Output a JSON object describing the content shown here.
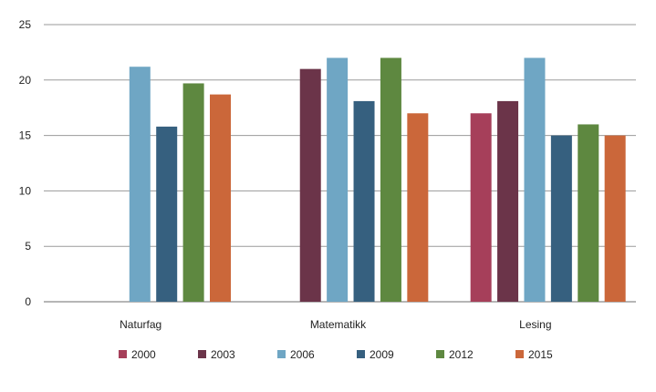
{
  "chart_data": {
    "type": "bar",
    "title": "",
    "xlabel": "",
    "ylabel": "",
    "ylim": [
      0,
      25
    ],
    "yticks": [
      0,
      5,
      10,
      15,
      20,
      25
    ],
    "grid": "horizontal",
    "legend_position": "bottom",
    "categories": [
      "Naturfag",
      "Matematikk",
      "Lesing"
    ],
    "series": [
      {
        "name": "2000",
        "color": "#a63f5a",
        "values": [
          null,
          null,
          17
        ]
      },
      {
        "name": "2003",
        "color": "#6b3449",
        "values": [
          null,
          21,
          18.1
        ]
      },
      {
        "name": "2006",
        "color": "#6fa6c4",
        "values": [
          21.2,
          22,
          22
        ]
      },
      {
        "name": "2009",
        "color": "#36607f",
        "values": [
          15.8,
          18.1,
          15
        ]
      },
      {
        "name": "2012",
        "color": "#5e8840",
        "values": [
          19.7,
          22,
          16
        ]
      },
      {
        "name": "2015",
        "color": "#cb673a",
        "values": [
          18.7,
          17,
          15
        ]
      }
    ]
  }
}
